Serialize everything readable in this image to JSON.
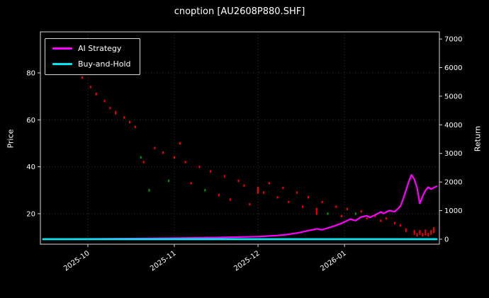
{
  "title": "cnoption [AU2608P880.SHF]",
  "colors": {
    "background": "#000000",
    "text": "#ffffff",
    "spine": "#d9d9d9",
    "grid": "#333333",
    "strategy": "#ff00ff",
    "buyhold": "#00e5ee",
    "mark_red": "#ff0000",
    "mark_green": "#00a000"
  },
  "chart_data": {
    "type": "line",
    "title": "cnoption [AU2608P880.SHF]",
    "grid": "dotted",
    "legend_position": "upper-left",
    "legend": [
      {
        "label": "AI Strategy",
        "color": "#ff00ff"
      },
      {
        "label": "Buy-and-Hold",
        "color": "#00e5ee"
      }
    ],
    "x_axis": {
      "lim": [
        "2025-09-14",
        "2026-02-04"
      ],
      "tick_labels": [
        "2025-10",
        "2025-11",
        "2025-12",
        "2026-01"
      ],
      "tick_dates": [
        "2025-10-01",
        "2025-11-01",
        "2025-12-01",
        "2026-01-01"
      ]
    },
    "left_axis": {
      "label": "Price",
      "ticks": [
        20,
        40,
        60,
        80
      ],
      "lim": [
        7,
        97.5
      ]
    },
    "right_axis": {
      "label": "Return",
      "ticks": [
        0,
        1000,
        2000,
        3000,
        4000,
        5000,
        6000,
        7000
      ],
      "lim": [
        -175,
        7250
      ]
    },
    "series": [
      {
        "name": "AI Strategy",
        "axis": "right",
        "color": "#ff00ff",
        "width": 2.2,
        "x": [
          "2025-09-15",
          "2025-10-01",
          "2025-10-15",
          "2025-11-01",
          "2025-11-15",
          "2025-12-01",
          "2025-12-08",
          "2025-12-12",
          "2025-12-16",
          "2025-12-19",
          "2025-12-22",
          "2025-12-24",
          "2025-12-27",
          "2025-12-30",
          "2026-01-01",
          "2026-01-03",
          "2026-01-05",
          "2026-01-07",
          "2026-01-09",
          "2026-01-10",
          "2026-01-12",
          "2026-01-14",
          "2026-01-15",
          "2026-01-17",
          "2026-01-19",
          "2026-01-21",
          "2026-01-22",
          "2026-01-23",
          "2026-01-24",
          "2026-01-25",
          "2026-01-26",
          "2026-01-27",
          "2026-01-28",
          "2026-01-29",
          "2026-01-30",
          "2026-01-31",
          "2026-02-01",
          "2026-02-03"
        ],
        "y": [
          0,
          10,
          20,
          35,
          55,
          90,
          130,
          170,
          230,
          300,
          360,
          330,
          420,
          520,
          600,
          700,
          650,
          780,
          820,
          760,
          850,
          950,
          900,
          1000,
          960,
          1150,
          1400,
          1700,
          2000,
          2250,
          2100,
          1800,
          1250,
          1500,
          1700,
          1820,
          1750,
          1850
        ]
      },
      {
        "name": "Buy-and-Hold",
        "axis": "right",
        "color": "#00e5ee",
        "width": 2.8,
        "x": [
          "2025-09-15",
          "2026-02-03"
        ],
        "y": [
          0,
          0
        ]
      }
    ],
    "price_marks": [
      [
        "2025-09-20",
        86,
        "r",
        1.5
      ],
      [
        "2025-09-22",
        84,
        "r",
        1
      ],
      [
        "2025-09-24",
        82,
        "r",
        1
      ],
      [
        "2025-09-26",
        80,
        "r",
        1.2
      ],
      [
        "2025-09-29",
        78,
        "r",
        1
      ],
      [
        "2025-10-02",
        74,
        "r",
        1
      ],
      [
        "2025-10-04",
        71,
        "r",
        1.2
      ],
      [
        "2025-10-07",
        68,
        "r",
        1
      ],
      [
        "2025-10-09",
        65,
        "r",
        1
      ],
      [
        "2025-10-11",
        63,
        "r",
        1.5
      ],
      [
        "2025-10-14",
        61,
        "r",
        1
      ],
      [
        "2025-10-16",
        59,
        "r",
        1
      ],
      [
        "2025-10-18",
        57,
        "r",
        1
      ],
      [
        "2025-10-20",
        44,
        "g",
        1
      ],
      [
        "2025-10-21",
        42,
        "r",
        1
      ],
      [
        "2025-10-23",
        30,
        "g",
        1.2
      ],
      [
        "2025-10-25",
        48,
        "r",
        1
      ],
      [
        "2025-10-28",
        46,
        "r",
        1
      ],
      [
        "2025-10-30",
        34,
        "g",
        1
      ],
      [
        "2025-11-01",
        44,
        "r",
        1
      ],
      [
        "2025-11-03",
        50,
        "r",
        1.2
      ],
      [
        "2025-11-05",
        42,
        "r",
        1
      ],
      [
        "2025-11-07",
        33,
        "r",
        1
      ],
      [
        "2025-11-10",
        40,
        "r",
        1
      ],
      [
        "2025-11-12",
        30,
        "g",
        1
      ],
      [
        "2025-11-14",
        38,
        "r",
        1
      ],
      [
        "2025-11-17",
        28,
        "r",
        1
      ],
      [
        "2025-11-19",
        36,
        "r",
        1
      ],
      [
        "2025-11-21",
        26,
        "r",
        1
      ],
      [
        "2025-11-24",
        34,
        "r",
        1
      ],
      [
        "2025-11-26",
        32,
        "r",
        1
      ],
      [
        "2025-11-28",
        24,
        "r",
        1
      ],
      [
        "2025-12-01",
        30,
        "r",
        3
      ],
      [
        "2025-12-03",
        29,
        "r",
        1
      ],
      [
        "2025-12-05",
        33,
        "r",
        1
      ],
      [
        "2025-12-08",
        27,
        "r",
        1
      ],
      [
        "2025-12-10",
        31,
        "r",
        1
      ],
      [
        "2025-12-12",
        25,
        "r",
        1
      ],
      [
        "2025-12-15",
        29,
        "r",
        1
      ],
      [
        "2025-12-17",
        23,
        "r",
        1
      ],
      [
        "2025-12-19",
        27,
        "r",
        1
      ],
      [
        "2025-12-22",
        21,
        "r",
        3
      ],
      [
        "2025-12-24",
        25,
        "r",
        1
      ],
      [
        "2025-12-26",
        20,
        "g",
        1
      ],
      [
        "2025-12-29",
        23,
        "r",
        1
      ],
      [
        "2025-12-31",
        19,
        "r",
        1
      ],
      [
        "2026-01-02",
        22,
        "r",
        1
      ],
      [
        "2026-01-05",
        20,
        "g",
        1
      ],
      [
        "2026-01-07",
        21,
        "r",
        1
      ],
      [
        "2026-01-09",
        18,
        "r",
        1
      ],
      [
        "2026-01-12",
        19,
        "r",
        1
      ],
      [
        "2026-01-14",
        17,
        "r",
        1
      ],
      [
        "2026-01-16",
        18,
        "r",
        1
      ],
      [
        "2026-01-19",
        16,
        "r",
        1
      ],
      [
        "2026-01-21",
        15,
        "r",
        1
      ],
      [
        "2026-01-23",
        13,
        "r",
        1.5
      ],
      [
        "2026-01-26",
        12,
        "r",
        2
      ],
      [
        "2026-01-27",
        11,
        "r",
        1.5
      ],
      [
        "2026-01-28",
        12,
        "r",
        2
      ],
      [
        "2026-01-29",
        11,
        "r",
        1.5
      ],
      [
        "2026-01-30",
        12,
        "r",
        2.5
      ],
      [
        "2026-01-31",
        11,
        "r",
        1.5
      ],
      [
        "2026-02-01",
        12,
        "r",
        2
      ],
      [
        "2026-02-02",
        13,
        "r",
        2.5
      ]
    ]
  }
}
